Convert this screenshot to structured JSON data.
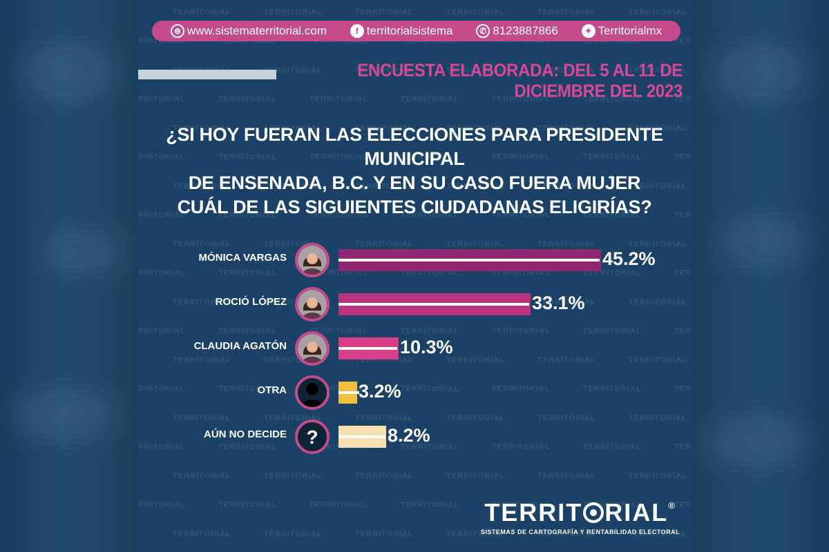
{
  "header": {
    "contacts": [
      {
        "icon": "globe-icon",
        "glyph": "⊕",
        "text": "www.sistematerritorial.com"
      },
      {
        "icon": "facebook-icon",
        "glyph": "f",
        "text": "territorialsistema"
      },
      {
        "icon": "whatsapp-icon",
        "glyph": "✆",
        "text": "8123887866"
      },
      {
        "icon": "twitter-icon",
        "glyph": "✦",
        "text": "Territorialmx"
      }
    ],
    "survey_date": "ENCUESTA ELABORADA: DEL 5 AL 11 DE DICIEMBRE DEL 2023"
  },
  "question_lines": [
    "¿SI HOY FUERAN LAS ELECCIONES PARA PRESIDENTE MUNICIPAL",
    "DE ENSENADA, B.C. Y EN SU CASO FUERA MUJER",
    "CUÁL DE LAS SIGUIENTES CIUDADANAS ELIGIRÍAS?"
  ],
  "chart_data": {
    "type": "bar",
    "orientation": "horizontal",
    "categories": [
      "MÓNICA VARGAS",
      "ROCIÓ LÓPEZ",
      "CLAUDIA AGATÓN",
      "OTRA",
      "AÚN NO DECIDE"
    ],
    "values": [
      45.2,
      33.1,
      10.3,
      3.2,
      8.2
    ],
    "value_labels": [
      "45.2%",
      "33.1%",
      "10.3%",
      "3.2%",
      "8.2%"
    ],
    "bar_colors": [
      "#8e2873",
      "#b8327f",
      "#d83f86",
      "#f0c040",
      "#f7dfb0"
    ],
    "avatar_icons": [
      "person-photo-icon",
      "person-photo-icon",
      "person-photo-icon",
      "person-silhouette-icon",
      "question-mark-icon"
    ],
    "ylim": [
      0,
      45.2
    ],
    "grid": false,
    "legend": "none"
  },
  "brand": {
    "logo_pre": "TERRIT",
    "logo_post": "RIAL",
    "registered": "®",
    "tagline": "SISTEMAS DE CARTOGRAFÍA Y RENTABILIDAD ELECTORAL"
  },
  "watermark_text": "TERRITORIAL",
  "colors": {
    "accent": "#c34a8b",
    "panel": "#1b4266",
    "date": "#d9479a"
  }
}
